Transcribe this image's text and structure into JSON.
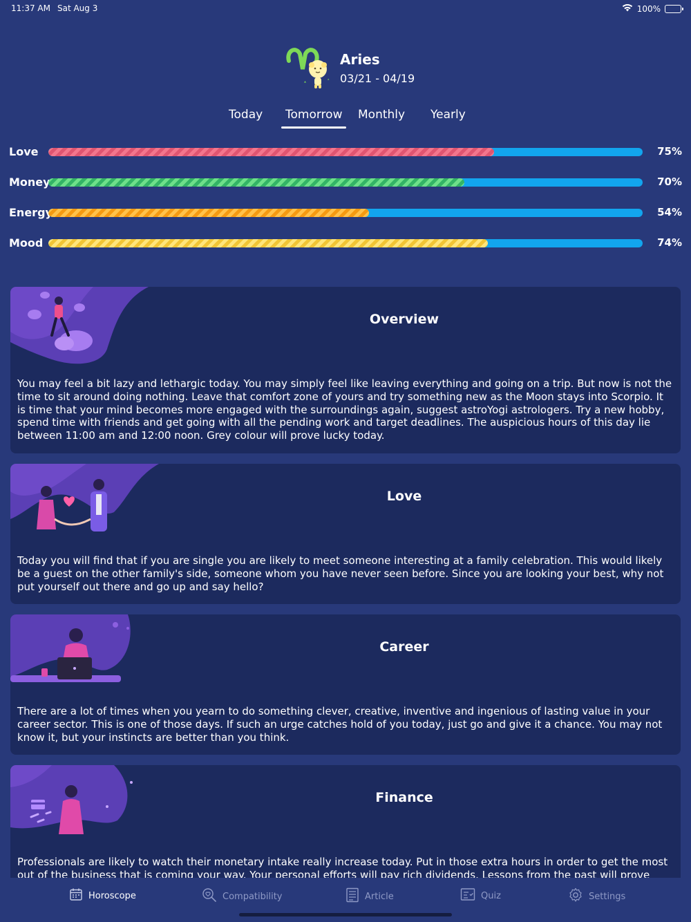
{
  "status_bar": {
    "time": "11:37 AM",
    "date": "Sat Aug 3",
    "battery": "100%"
  },
  "sign": {
    "name": "Aries",
    "dates": "03/21 - 04/19"
  },
  "tabs": [
    {
      "label": "Today",
      "active": false
    },
    {
      "label": "Tomorrow",
      "active": true
    },
    {
      "label": "Monthly",
      "active": false
    },
    {
      "label": "Yearly",
      "active": false
    }
  ],
  "meters": [
    {
      "label": "Love",
      "value": 75,
      "display": "75%",
      "color": "#f3768d"
    },
    {
      "label": "Money",
      "value": 70,
      "display": "70%",
      "color": "#6ee08a"
    },
    {
      "label": "Energy",
      "value": 54,
      "display": "54%",
      "color": "#ffc24a"
    },
    {
      "label": "Mood",
      "value": 74,
      "display": "74%",
      "color": "#ffe57a"
    }
  ],
  "sections": [
    {
      "title": "Overview",
      "text": "You may feel a bit lazy and lethargic today. You may simply feel like leaving everything and going on a trip. But now is not the time to sit around doing nothing. Leave that comfort zone of yours and try something new as the Moon stays into Scorpio. It is time that your mind becomes more engaged with the surroundings again, suggest astroYogi astrologers. Try a new hobby, spend time with friends and get going with all the pending work and target deadlines. The auspicious hours of this day lie between 11:00 am and 12:00 noon. Grey colour will prove lucky today."
    },
    {
      "title": "Love",
      "text": "Today you will find that if you are single you are likely to meet someone interesting at a family celebration. This would likely be a guest on the other family's side, someone whom you have never seen before. Since you are looking your best, why not put yourself out there and go up and say hello?"
    },
    {
      "title": "Career",
      "text": "There are a lot of times when you yearn to do something clever, creative, inventive and ingenious of lasting value in your career sector. This is one of those days. If such an urge catches hold of you today, just go and  give it a chance. You may not know it, but your instincts are better than you think."
    },
    {
      "title": "Finance",
      "text": "Professionals are likely to watch their monetary intake really increase today. Put in those extra hours in order to get the most out of the business that is coming your way. Your personal efforts will pay rich dividends. Lessons from the past will prove helpful to you"
    }
  ],
  "nav": [
    {
      "label": "Horoscope",
      "icon": "calendar-icon",
      "active": true
    },
    {
      "label": "Compatibility",
      "icon": "compatibility-icon",
      "active": false
    },
    {
      "label": "Article",
      "icon": "article-icon",
      "active": false
    },
    {
      "label": "Quiz",
      "icon": "quiz-icon",
      "active": false
    },
    {
      "label": "Settings",
      "icon": "gear-icon",
      "active": false
    }
  ]
}
